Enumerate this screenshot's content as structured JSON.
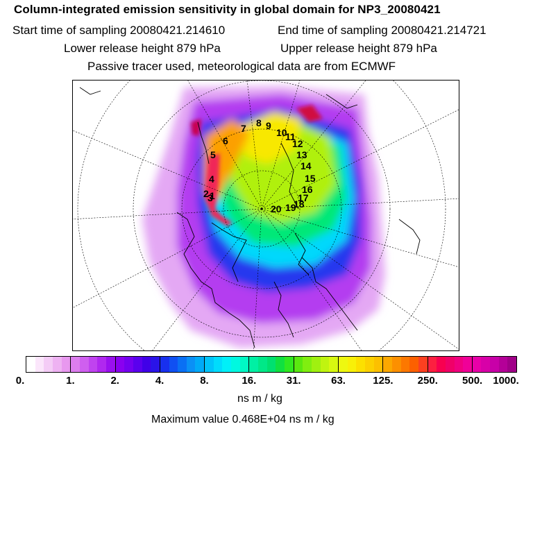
{
  "header": {
    "title": "Column-integrated emission sensitivity in global domain for NP3_20080421",
    "start_time": "Start time of sampling 20080421.214610",
    "end_time": "End time of sampling 20080421.214721",
    "lower_height": "Lower release height  879 hPa",
    "upper_height": "Upper release height  879 hPa",
    "tracer": "Passive tracer used, meteorological data are from ECMWF"
  },
  "map": {
    "point_labels": [
      "1",
      "2",
      "3",
      "4",
      "5",
      "6",
      "7",
      "8",
      "9",
      "10",
      "11",
      "12",
      "13",
      "14",
      "15",
      "16",
      "17",
      "18",
      "19",
      "20"
    ]
  },
  "colorbar": {
    "tick_labels": [
      "0.",
      "1.",
      "2.",
      "4.",
      "8.",
      "16.",
      "31.",
      "63.",
      "125.",
      "250.",
      "500.",
      "1000."
    ],
    "colors": [
      "#ffffff",
      "#fbe6fb",
      "#f4ccf6",
      "#eeb2f2",
      "#e898ef",
      "#dc7eee",
      "#cf5fef",
      "#c043ef",
      "#b028ef",
      "#9a10ef",
      "#8a00f0",
      "#7400f0",
      "#5a00ee",
      "#4000e8",
      "#2a14e8",
      "#1830ee",
      "#1050f2",
      "#0a70f4",
      "#0a90f6",
      "#00aaf8",
      "#00c4fa",
      "#00dcfc",
      "#00f0f8",
      "#00f8e0",
      "#00f8c4",
      "#00f0a4",
      "#00e888",
      "#00e070",
      "#10e040",
      "#30e820",
      "#5ae810",
      "#80ee10",
      "#a0f010",
      "#c0f410",
      "#d8f810",
      "#eef810",
      "#f8f008",
      "#fce000",
      "#fcd000",
      "#fcc000",
      "#fca800",
      "#fc9000",
      "#fc7800",
      "#fc6000",
      "#fc4020",
      "#fc2040",
      "#f80050",
      "#f00068",
      "#f00080",
      "#f00098",
      "#e800a8",
      "#d800a8",
      "#c800a8",
      "#b40098",
      "#a00088",
      "#880078",
      "#700068",
      "#580058",
      "#400040",
      "#300030"
    ],
    "unit": "ns m / kg",
    "max_value": "Maximum value  0.468E+04 ns m / kg"
  }
}
